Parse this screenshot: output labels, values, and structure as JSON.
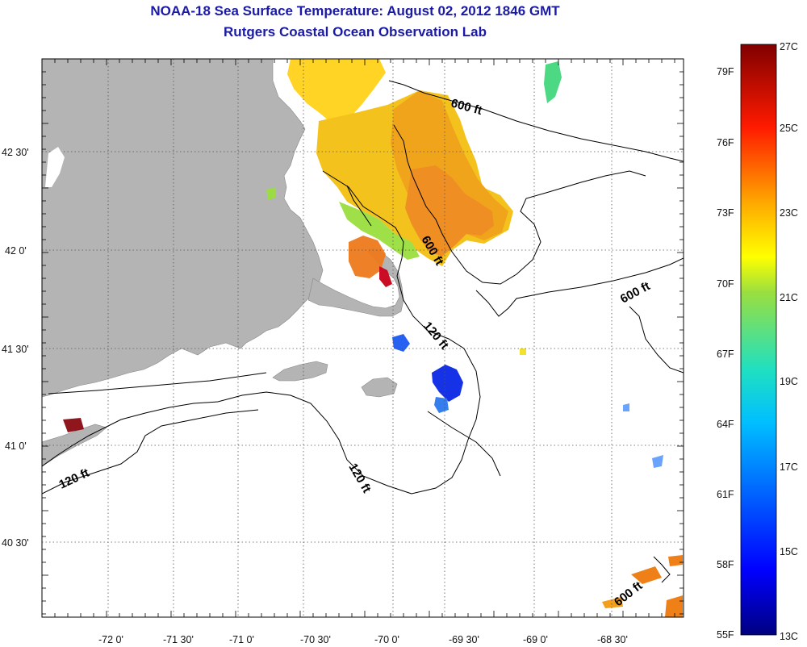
{
  "title": {
    "line1": "NOAA-18 Sea Surface Temperature:  August 02, 2012 1846 GMT",
    "line2": "Rutgers Coastal Ocean Observation Lab"
  },
  "colors": {
    "title": "#1a1aa6",
    "land": "#b4b4b4",
    "contour": "#000000",
    "cloud": "#ffffff"
  },
  "axes": {
    "lon_labels": [
      "-72 0'",
      "-71 30'",
      "-71 0'",
      "-70 30'",
      "-70 0'",
      "-69 30'",
      "-69 0'",
      "-68 30'"
    ],
    "lat_labels": [
      "42 30'",
      "42 0'",
      "41 30'",
      "41 0'",
      "40 30'"
    ]
  },
  "contour_labels": [
    "600 ft",
    "600 ft",
    "600 ft",
    "600 ft",
    "120 ft",
    "120 ft",
    "120 ft"
  ],
  "colorbar": {
    "f_labels": [
      "79F",
      "76F",
      "73F",
      "70F",
      "67F",
      "64F",
      "61F",
      "58F",
      "55F"
    ],
    "c_labels": [
      "27C",
      "25C",
      "23C",
      "21C",
      "19C",
      "17C",
      "15C",
      "13C"
    ],
    "range_c": [
      13,
      27
    ],
    "range_f": [
      55,
      80
    ]
  }
}
